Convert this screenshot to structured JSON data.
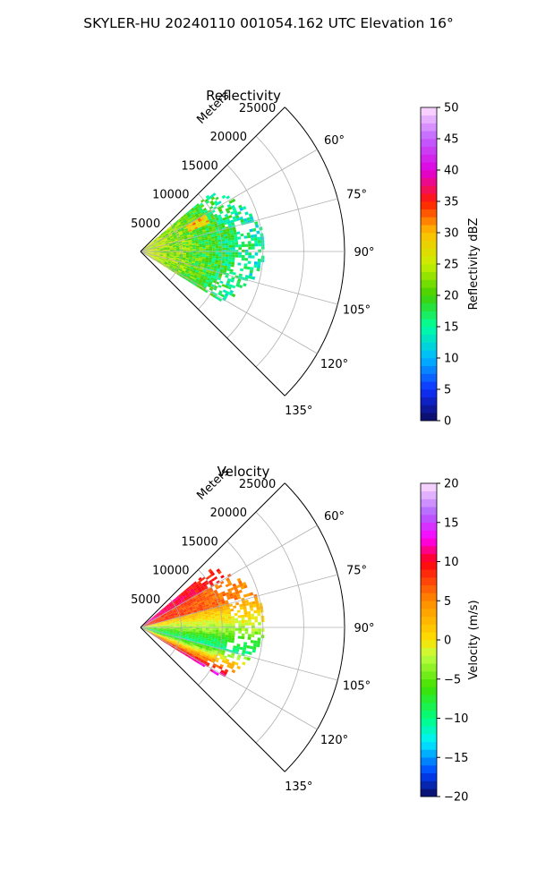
{
  "figure": {
    "title": "SKYLER-HU  20240110  001054.162 UTC Elevation 16°"
  },
  "chart_data": [
    {
      "type": "heatmap",
      "projection": "polar-sector",
      "title": "Reflectivity",
      "radial_axis_label": "Meters",
      "radial_ticks": [
        "5000",
        "10000",
        "15000",
        "20000",
        "25000"
      ],
      "radial_tick_values": [
        5000,
        10000,
        15000,
        20000,
        25000
      ],
      "angle_ticks": [
        "60°",
        "75°",
        "90°",
        "105°",
        "120°",
        "135°"
      ],
      "angle_tick_values": [
        60,
        75,
        90,
        105,
        120,
        135
      ],
      "theta_range_deg": [
        45,
        135
      ],
      "r_range": [
        0,
        25000
      ],
      "grid": true,
      "data_extent": {
        "r_max": 15000,
        "theta_range_deg": [
          50,
          122
        ]
      },
      "colorbar": {
        "label": "Reflectivity dBZ",
        "range": [
          0,
          50
        ],
        "ticks": [
          "0",
          "5",
          "10",
          "15",
          "20",
          "25",
          "30",
          "35",
          "40",
          "45",
          "50"
        ],
        "tick_values": [
          0,
          5,
          10,
          15,
          20,
          25,
          30,
          35,
          40,
          45,
          50
        ],
        "stops": [
          [
            0,
            "#0b0b5e"
          ],
          [
            5,
            "#1030ff"
          ],
          [
            10,
            "#00b8ff"
          ],
          [
            15,
            "#00ffa0"
          ],
          [
            20,
            "#40d000"
          ],
          [
            25,
            "#c8f000"
          ],
          [
            30,
            "#ffc000"
          ],
          [
            35,
            "#ff1a00"
          ],
          [
            40,
            "#e000e0"
          ],
          [
            45,
            "#c060ff"
          ],
          [
            50,
            "#ffe0ff"
          ]
        ]
      }
    },
    {
      "type": "heatmap",
      "projection": "polar-sector",
      "title": "Velocity",
      "radial_axis_label": "Meters",
      "radial_ticks": [
        "5000",
        "10000",
        "15000",
        "20000",
        "25000"
      ],
      "radial_tick_values": [
        5000,
        10000,
        15000,
        20000,
        25000
      ],
      "angle_ticks": [
        "60°",
        "75°",
        "90°",
        "105°",
        "120°",
        "135°"
      ],
      "angle_tick_values": [
        60,
        75,
        90,
        105,
        120,
        135
      ],
      "theta_range_deg": [
        45,
        135
      ],
      "r_range": [
        0,
        25000
      ],
      "grid": true,
      "data_extent": {
        "r_max": 15000,
        "theta_range_deg": [
          50,
          122
        ]
      },
      "colorbar": {
        "label": "Velocity (m/s)",
        "range": [
          -20,
          20
        ],
        "ticks": [
          "−20",
          "−15",
          "−10",
          "−5",
          "0",
          "5",
          "10",
          "15",
          "20"
        ],
        "tick_values": [
          -20,
          -15,
          -10,
          -5,
          0,
          5,
          10,
          15,
          20
        ],
        "stops": [
          [
            -20,
            "#0b0b5e"
          ],
          [
            -17,
            "#0040ff"
          ],
          [
            -13,
            "#00f0ff"
          ],
          [
            -10,
            "#00ff80"
          ],
          [
            -6,
            "#40e000"
          ],
          [
            -2,
            "#c0ff40"
          ],
          [
            0,
            "#ffe000"
          ],
          [
            5,
            "#ff8c00"
          ],
          [
            10,
            "#ff0010"
          ],
          [
            13,
            "#ff00ff"
          ],
          [
            16,
            "#b060ff"
          ],
          [
            20,
            "#ffe0ff"
          ]
        ]
      }
    }
  ]
}
